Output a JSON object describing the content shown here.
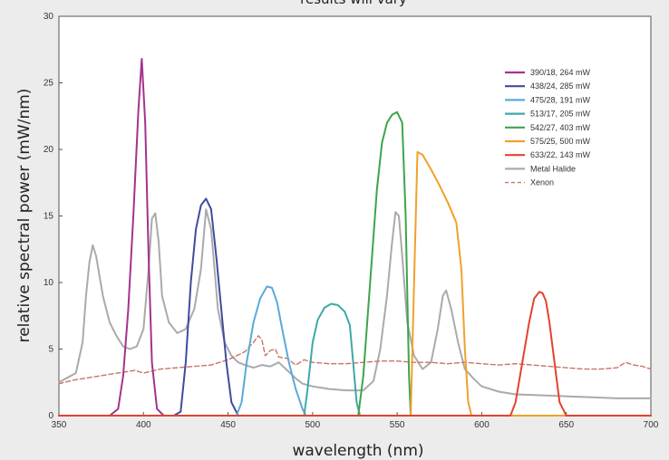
{
  "chart_data": {
    "type": "line",
    "title": "results will vary",
    "xlabel": "wavelength (nm)",
    "ylabel": "relative spectral power (mW/nm)",
    "xlim": [
      350,
      700
    ],
    "ylim": [
      0,
      30
    ],
    "xticks": [
      350,
      400,
      450,
      500,
      550,
      600,
      650,
      700
    ],
    "yticks": [
      0,
      5,
      10,
      15,
      20,
      25,
      30
    ],
    "grid": false,
    "legend_position": "top-right",
    "series": [
      {
        "name": "390/18, 264 mW",
        "color": "#a4328f",
        "style": "solid",
        "x": [
          350,
          380,
          385,
          388,
          391,
          394,
          397,
          399,
          401,
          403,
          405,
          408,
          412,
          450,
          700
        ],
        "y": [
          0,
          0,
          0.5,
          3,
          8,
          15,
          23,
          26.8,
          22,
          12,
          4,
          0.5,
          0,
          0,
          0
        ]
      },
      {
        "name": "438/24, 285 mW",
        "color": "#3e4d9c",
        "style": "solid",
        "x": [
          350,
          418,
          422,
          425,
          428,
          431,
          434,
          437,
          440,
          443,
          446,
          449,
          452,
          456,
          700
        ],
        "y": [
          0,
          0,
          0.3,
          4,
          10,
          14,
          15.8,
          16.3,
          15.5,
          12,
          8,
          4,
          1,
          0,
          0
        ]
      },
      {
        "name": "475/28, 191 mW",
        "color": "#5aa9dc",
        "style": "solid",
        "x": [
          350,
          455,
          458,
          461,
          465,
          469,
          473,
          476,
          479,
          482,
          486,
          490,
          494,
          496,
          700
        ],
        "y": [
          0,
          0,
          1,
          4,
          7,
          8.8,
          9.7,
          9.6,
          8.5,
          6.5,
          4,
          2,
          0.5,
          0,
          0
        ]
      },
      {
        "name": "513/17, 205 mW",
        "color": "#3ea8a8",
        "style": "solid",
        "x": [
          350,
          495,
          497,
          500,
          503,
          507,
          511,
          515,
          519,
          522,
          524,
          526,
          528,
          700
        ],
        "y": [
          0,
          0,
          2,
          5.5,
          7.2,
          8.1,
          8.4,
          8.3,
          7.8,
          6.8,
          4,
          1,
          0,
          0
        ]
      },
      {
        "name": "542/27, 403 mW",
        "color": "#3ea44b",
        "style": "solid",
        "x": [
          350,
          527,
          530,
          534,
          538,
          541,
          544,
          547,
          550,
          553,
          555,
          557,
          558,
          700
        ],
        "y": [
          0,
          0,
          3,
          10,
          17,
          20.5,
          22,
          22.6,
          22.8,
          22,
          15,
          3,
          0,
          0
        ]
      },
      {
        "name": "575/25, 500 mW",
        "color": "#f0a12b",
        "style": "solid",
        "x": [
          350,
          558,
          560,
          562,
          565,
          570,
          575,
          580,
          585,
          588,
          590,
          592,
          594,
          700
        ],
        "y": [
          0,
          0,
          10,
          19.8,
          19.6,
          18.5,
          17.3,
          16,
          14.5,
          11,
          5,
          1,
          0,
          0
        ]
      },
      {
        "name": "633/22, 143 mW",
        "color": "#e0442f",
        "style": "solid",
        "x": [
          350,
          617,
          620,
          624,
          628,
          631,
          634,
          636,
          638,
          640,
          643,
          646,
          650,
          700
        ],
        "y": [
          0,
          0,
          1,
          4,
          7,
          8.8,
          9.3,
          9.2,
          8.6,
          7,
          4,
          1,
          0,
          0
        ]
      },
      {
        "name": "Metal Halide",
        "color": "#aaaaaa",
        "style": "solid",
        "x": [
          350,
          360,
          364,
          366,
          368,
          370,
          372,
          376,
          380,
          384,
          388,
          392,
          396,
          400,
          403,
          405,
          407,
          409,
          411,
          415,
          420,
          425,
          430,
          434,
          437,
          440,
          444,
          448,
          452,
          456,
          460,
          465,
          470,
          475,
          480,
          485,
          490,
          494,
          500,
          510,
          520,
          530,
          536,
          540,
          544,
          547,
          549,
          551,
          553,
          556,
          560,
          565,
          570,
          574,
          577,
          579,
          582,
          586,
          590,
          595,
          600,
          610,
          620,
          640,
          660,
          680,
          700
        ],
        "y": [
          2.5,
          3.2,
          5.5,
          9,
          11.5,
          12.8,
          12,
          9,
          7,
          6,
          5.2,
          5,
          5.2,
          6.5,
          11,
          14.8,
          15.2,
          13,
          9,
          7,
          6.2,
          6.5,
          8,
          11,
          15.5,
          14,
          8,
          5.5,
          4.5,
          4,
          3.8,
          3.6,
          3.8,
          3.7,
          4,
          3.4,
          2.8,
          2.4,
          2.2,
          2,
          1.9,
          1.9,
          2.6,
          5,
          9,
          13,
          15.3,
          15,
          12,
          7,
          4.5,
          3.5,
          4,
          6.5,
          9,
          9.4,
          8,
          5.5,
          3.5,
          2.8,
          2.2,
          1.8,
          1.6,
          1.5,
          1.4,
          1.3,
          1.3
        ]
      },
      {
        "name": "Xenon",
        "color": "#c97466",
        "style": "dashed",
        "x": [
          350,
          360,
          370,
          380,
          390,
          395,
          400,
          410,
          420,
          430,
          440,
          450,
          455,
          460,
          465,
          468,
          470,
          472,
          475,
          478,
          480,
          485,
          490,
          495,
          500,
          510,
          520,
          530,
          540,
          550,
          560,
          570,
          580,
          590,
          600,
          610,
          620,
          630,
          640,
          650,
          660,
          670,
          680,
          685,
          690,
          695,
          700
        ],
        "y": [
          2.4,
          2.7,
          2.9,
          3.1,
          3.3,
          3.4,
          3.2,
          3.5,
          3.6,
          3.7,
          3.8,
          4.2,
          4.5,
          4.8,
          5.5,
          6,
          5.7,
          4.5,
          4.9,
          5,
          4.4,
          4.3,
          3.8,
          4.2,
          4.0,
          3.9,
          3.9,
          4.0,
          4.1,
          4.1,
          4.0,
          4.0,
          3.9,
          4.0,
          3.9,
          3.8,
          3.9,
          3.8,
          3.7,
          3.6,
          3.5,
          3.5,
          3.6,
          4.0,
          3.8,
          3.7,
          3.5
        ]
      }
    ]
  }
}
